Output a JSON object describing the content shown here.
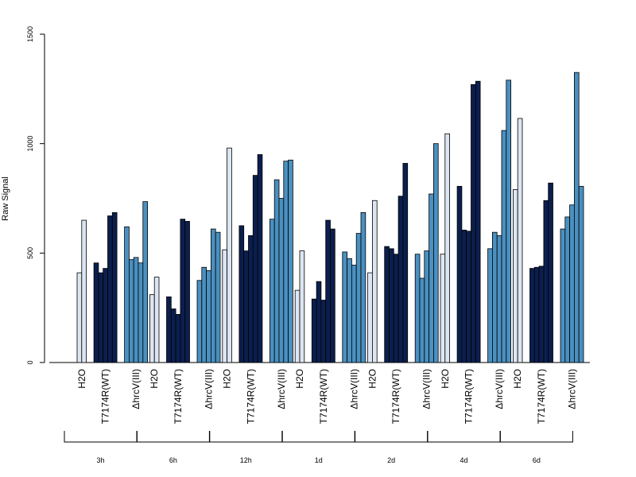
{
  "chart_data": {
    "type": "bar",
    "title": "",
    "ylabel": "Raw Signal",
    "xlabel": "",
    "ylim": [
      0,
      1500
    ],
    "yticks": [
      0,
      500,
      1000,
      1500
    ],
    "grid": false,
    "colors": {
      "H2O": "#dce6f2",
      "T7174R(WT)": "#0b1f4e",
      "hrcV": "#4a90c0"
    },
    "timepoints": [
      {
        "label": "3h",
        "groups": [
          {
            "name": "H2O",
            "color_key": "H2O",
            "values": [
              410,
              650
            ]
          },
          {
            "name": "T7174R(WT)",
            "color_key": "T7174R(WT)",
            "values": [
              455,
              410,
              430,
              670,
              685
            ]
          },
          {
            "name": "ΔhrcV(III)",
            "color_key": "hrcV",
            "values": [
              620,
              470,
              480,
              455,
              735
            ]
          }
        ]
      },
      {
        "label": "6h",
        "groups": [
          {
            "name": "H2O",
            "color_key": "H2O",
            "values": [
              310,
              390
            ]
          },
          {
            "name": "T7174R(WT)",
            "color_key": "T7174R(WT)",
            "values": [
              300,
              245,
              220,
              655,
              645
            ]
          },
          {
            "name": "ΔhrcV(III)",
            "color_key": "hrcV",
            "values": [
              375,
              435,
              420,
              610,
              595
            ]
          }
        ]
      },
      {
        "label": "12h",
        "groups": [
          {
            "name": "H2O",
            "color_key": "H2O",
            "values": [
              515,
              980
            ]
          },
          {
            "name": "T7174R(WT)",
            "color_key": "T7174R(WT)",
            "values": [
              625,
              510,
              580,
              855,
              950
            ]
          },
          {
            "name": "ΔhrcV(III)",
            "color_key": "hrcV",
            "values": [
              655,
              835,
              750,
              920,
              925
            ]
          }
        ]
      },
      {
        "label": "1d",
        "groups": [
          {
            "name": "H2O",
            "color_key": "H2O",
            "values": [
              330,
              510
            ]
          },
          {
            "name": "T7174R(WT)",
            "color_key": "T7174R(WT)",
            "values": [
              290,
              370,
              285,
              650,
              610
            ]
          },
          {
            "name": "ΔhrcV(III)",
            "color_key": "hrcV",
            "values": [
              505,
              475,
              445,
              590,
              685
            ]
          }
        ]
      },
      {
        "label": "2d",
        "groups": [
          {
            "name": "H2O",
            "color_key": "H2O",
            "values": [
              410,
              740
            ]
          },
          {
            "name": "T7174R(WT)",
            "color_key": "T7174R(WT)",
            "values": [
              530,
              520,
              495,
              760,
              910
            ]
          },
          {
            "name": "ΔhrcV(III)",
            "color_key": "hrcV",
            "values": [
              495,
              385,
              510,
              770,
              1000
            ]
          }
        ]
      },
      {
        "label": "4d",
        "groups": [
          {
            "name": "H2O",
            "color_key": "H2O",
            "values": [
              495,
              1045
            ]
          },
          {
            "name": "T7174R(WT)",
            "color_key": "T7174R(WT)",
            "values": [
              805,
              605,
              600,
              1270,
              1285
            ]
          },
          {
            "name": "ΔhrcV(III)",
            "color_key": "hrcV",
            "values": [
              520,
              595,
              580,
              1060,
              1290
            ]
          }
        ]
      },
      {
        "label": "6d",
        "groups": [
          {
            "name": "H2O",
            "color_key": "H2O",
            "values": [
              790,
              1115
            ]
          },
          {
            "name": "T7174R(WT)",
            "color_key": "T7174R(WT)",
            "values": [
              430,
              435,
              440,
              740,
              820
            ]
          },
          {
            "name": "ΔhrcV(III)",
            "color_key": "hrcV",
            "values": [
              610,
              665,
              720,
              1325,
              805
            ]
          }
        ]
      }
    ]
  }
}
